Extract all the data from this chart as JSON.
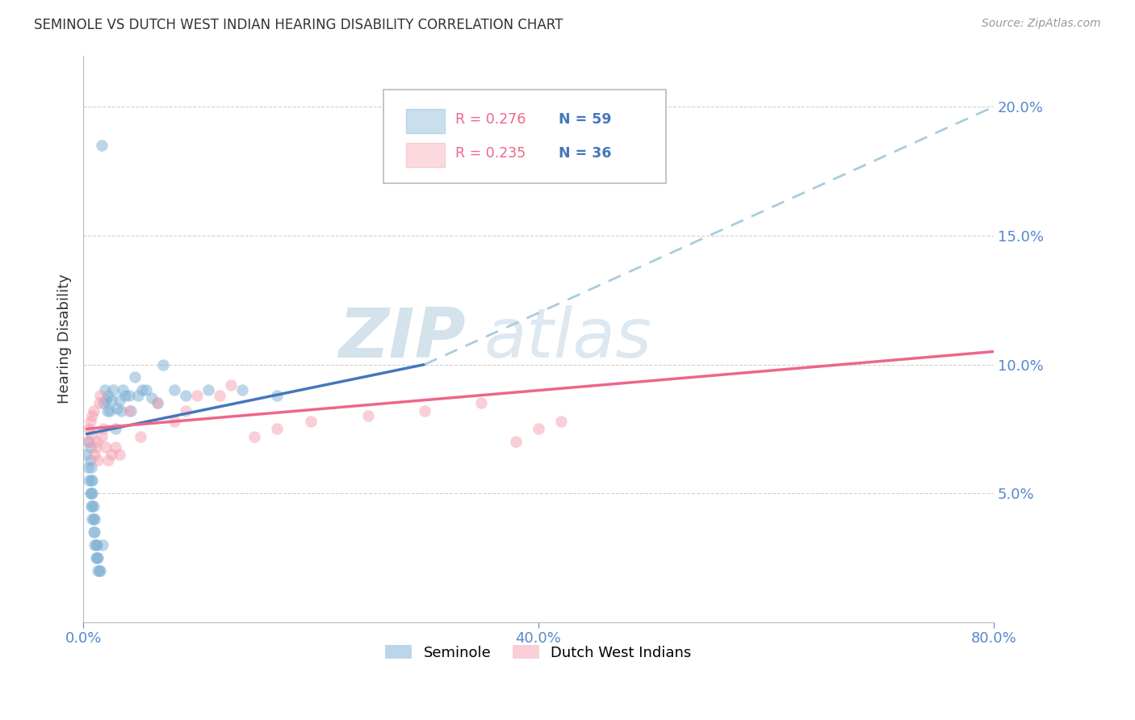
{
  "title": "SEMINOLE VS DUTCH WEST INDIAN HEARING DISABILITY CORRELATION CHART",
  "source": "Source: ZipAtlas.com",
  "ylabel": "Hearing Disability",
  "xlim": [
    0.0,
    0.8
  ],
  "ylim": [
    0.0,
    0.22
  ],
  "yticks": [
    0.05,
    0.1,
    0.15,
    0.2
  ],
  "ytick_labels": [
    "5.0%",
    "10.0%",
    "15.0%",
    "20.0%"
  ],
  "xtick_positions": [
    0.0,
    0.4,
    0.8
  ],
  "xtick_labels": [
    "0.0%",
    "40.0%",
    "80.0%"
  ],
  "seminole_color": "#7BAFD4",
  "dutch_color": "#F4A0B0",
  "trendline_seminole_color": "#4477BB",
  "trendline_dutch_color": "#EE6688",
  "trendline_ext_color": "#AACCDD",
  "legend_r_seminole": "R = 0.276",
  "legend_n_seminole": "N = 59",
  "legend_r_dutch": "R = 0.235",
  "legend_n_dutch": "N = 36",
  "watermark_zip": "ZIP",
  "watermark_atlas": "atlas",
  "background_color": "#ffffff",
  "grid_color": "#CCCCCC",
  "axis_label_color": "#5588CC",
  "tick_color": "#5588CC",
  "seminole_x": [
    0.003,
    0.004,
    0.005,
    0.005,
    0.006,
    0.006,
    0.006,
    0.007,
    0.007,
    0.007,
    0.007,
    0.008,
    0.008,
    0.008,
    0.008,
    0.009,
    0.009,
    0.009,
    0.01,
    0.01,
    0.01,
    0.011,
    0.011,
    0.012,
    0.012,
    0.013,
    0.013,
    0.014,
    0.015,
    0.016,
    0.017,
    0.018,
    0.019,
    0.02,
    0.021,
    0.022,
    0.023,
    0.025,
    0.026,
    0.028,
    0.03,
    0.032,
    0.033,
    0.035,
    0.037,
    0.04,
    0.042,
    0.045,
    0.048,
    0.052,
    0.055,
    0.06,
    0.065,
    0.07,
    0.08,
    0.09,
    0.11,
    0.14,
    0.17
  ],
  "seminole_y": [
    0.065,
    0.06,
    0.055,
    0.07,
    0.05,
    0.063,
    0.068,
    0.045,
    0.05,
    0.055,
    0.06,
    0.04,
    0.045,
    0.05,
    0.055,
    0.035,
    0.04,
    0.045,
    0.03,
    0.035,
    0.04,
    0.025,
    0.03,
    0.025,
    0.03,
    0.02,
    0.025,
    0.02,
    0.02,
    0.185,
    0.03,
    0.085,
    0.09,
    0.086,
    0.082,
    0.088,
    0.082,
    0.086,
    0.09,
    0.075,
    0.083,
    0.086,
    0.082,
    0.09,
    0.088,
    0.088,
    0.082,
    0.095,
    0.088,
    0.09,
    0.09,
    0.087,
    0.085,
    0.1,
    0.09,
    0.088,
    0.09,
    0.09,
    0.088
  ],
  "dutch_x": [
    0.004,
    0.005,
    0.006,
    0.007,
    0.008,
    0.009,
    0.01,
    0.011,
    0.012,
    0.013,
    0.014,
    0.015,
    0.016,
    0.018,
    0.02,
    0.022,
    0.025,
    0.028,
    0.032,
    0.04,
    0.05,
    0.065,
    0.08,
    0.1,
    0.13,
    0.4,
    0.42,
    0.38,
    0.35,
    0.3,
    0.25,
    0.2,
    0.17,
    0.15,
    0.12,
    0.09
  ],
  "dutch_y": [
    0.07,
    0.075,
    0.078,
    0.073,
    0.08,
    0.082,
    0.065,
    0.068,
    0.07,
    0.063,
    0.085,
    0.088,
    0.072,
    0.075,
    0.068,
    0.063,
    0.065,
    0.068,
    0.065,
    0.082,
    0.072,
    0.085,
    0.078,
    0.088,
    0.092,
    0.075,
    0.078,
    0.07,
    0.085,
    0.082,
    0.08,
    0.078,
    0.075,
    0.072,
    0.088,
    0.082
  ],
  "seminole_trendline_x_start": 0.003,
  "seminole_trendline_x_solid_end": 0.3,
  "seminole_trendline_x_end": 0.8,
  "seminole_trendline_y_start": 0.073,
  "seminole_trendline_y_solid_end": 0.1,
  "seminole_trendline_y_end": 0.2,
  "dutch_trendline_x_start": 0.003,
  "dutch_trendline_x_end": 0.8,
  "dutch_trendline_y_start": 0.075,
  "dutch_trendline_y_end": 0.105
}
